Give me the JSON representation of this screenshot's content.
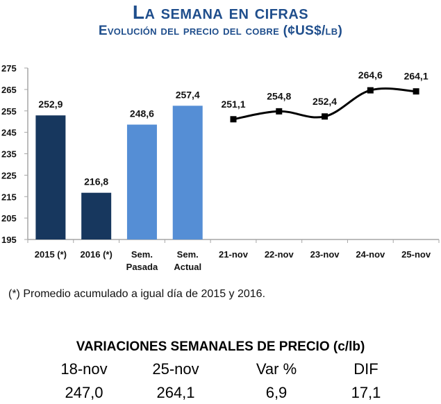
{
  "header": {
    "title": "La semana en cifras",
    "subtitle": "Evolución del precio del cobre  (¢US$/lb)"
  },
  "chart_data": {
    "type": "bar+line",
    "title": "Evolución del precio del cobre (¢US$/lb)",
    "xlabel": "",
    "ylabel": "",
    "ylim": [
      195,
      275
    ],
    "yticks": [
      195,
      205,
      215,
      225,
      235,
      245,
      255,
      265,
      275
    ],
    "grid": false,
    "categories": [
      "2015 (*)",
      "2016 (*)",
      "Sem. Pasada",
      "Sem. Actual",
      "21-nov",
      "22-nov",
      "23-nov",
      "24-nov",
      "25-nov"
    ],
    "category_lines": [
      [
        "2015 (*)"
      ],
      [
        "2016 (*)"
      ],
      [
        "Sem.",
        "Pasada"
      ],
      [
        "Sem.",
        "Actual"
      ],
      [
        "21-nov"
      ],
      [
        "22-nov"
      ],
      [
        "23-nov"
      ],
      [
        "24-nov"
      ],
      [
        "25-nov"
      ]
    ],
    "bars": [
      {
        "category": "2015 (*)",
        "value": 252.9,
        "label": "252,9",
        "color": "#17375e"
      },
      {
        "category": "2016 (*)",
        "value": 216.8,
        "label": "216,8",
        "color": "#17375e"
      },
      {
        "category": "Sem. Pasada",
        "value": 248.6,
        "label": "248,6",
        "color": "#558ed5"
      },
      {
        "category": "Sem. Actual",
        "value": 257.4,
        "label": "257,4",
        "color": "#558ed5"
      }
    ],
    "line": {
      "color": "#000000",
      "points": [
        {
          "category": "21-nov",
          "value": 251.1,
          "label": "251,1"
        },
        {
          "category": "22-nov",
          "value": 254.8,
          "label": "254,8"
        },
        {
          "category": "23-nov",
          "value": 252.4,
          "label": "252,4"
        },
        {
          "category": "24-nov",
          "value": 264.6,
          "label": "264,6"
        },
        {
          "category": "25-nov",
          "value": 264.1,
          "label": "264,1"
        }
      ]
    }
  },
  "footnote": "(*) Promedio acumulado a igual día de 2015  y 2016.",
  "variations": {
    "title": "VARIACIONES SEMANALES DE PRECIO (c/lb)",
    "headers": [
      "18-nov",
      "25-nov",
      "Var %",
      "DIF"
    ],
    "values": [
      "247,0",
      "264,1",
      "6,9",
      "17,1"
    ]
  }
}
